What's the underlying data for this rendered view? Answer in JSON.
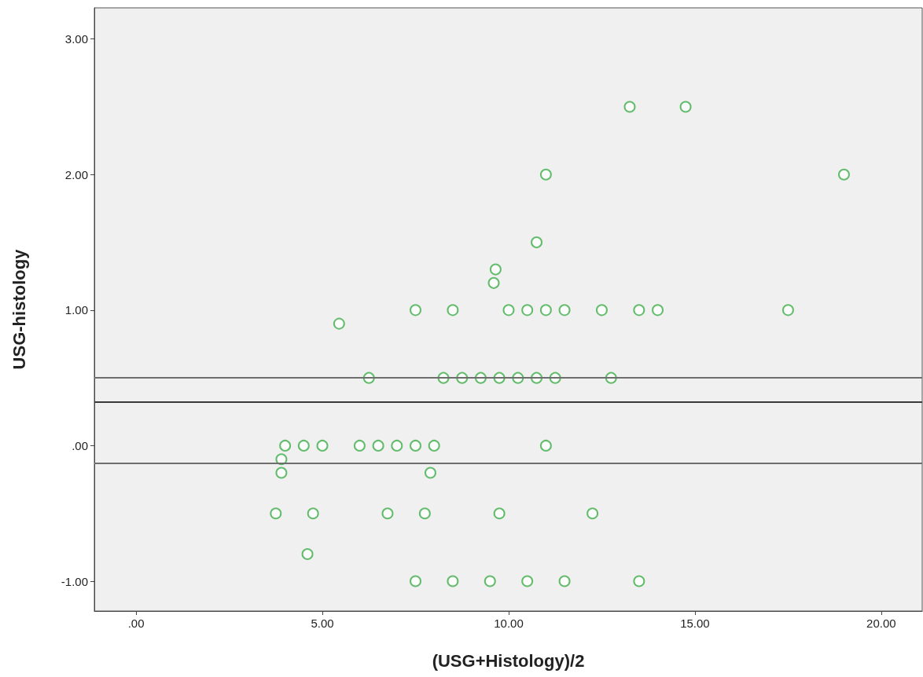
{
  "chart_data": {
    "type": "scatter",
    "xlabel": "(USG+Histology)/2",
    "ylabel": "USG-histology",
    "x": [
      13.25,
      14.75,
      11.0,
      19.0,
      10.75,
      9.65,
      9.6,
      7.5,
      8.5,
      10,
      10.5,
      11,
      11.5,
      12.5,
      13.5,
      14,
      17.5,
      5.45,
      6.25,
      8.25,
      8.75,
      9.25,
      9.75,
      10.25,
      10.75,
      11.25,
      12.75,
      4,
      4.5,
      5,
      6,
      6.5,
      7,
      7.5,
      8,
      11,
      3.9,
      3.9,
      7.9,
      3.75,
      4.75,
      6.75,
      7.75,
      9.75,
      12.25,
      4.6,
      7.5,
      8.5,
      9.5,
      10.5,
      11.5,
      13.5
    ],
    "series": [
      {
        "color": "#3fae49",
        "values": [
          2.5,
          2.5,
          2,
          2,
          1.5,
          1.3,
          1.2,
          1,
          1,
          1,
          1,
          1,
          1,
          1,
          1,
          1,
          1,
          0.9,
          0.5,
          0.5,
          0.5,
          0.5,
          0.5,
          0.5,
          0.5,
          0.5,
          0.5,
          0,
          0,
          0,
          0,
          0,
          0,
          0,
          0,
          0,
          -0.1,
          -0.2,
          -0.2,
          -0.5,
          -0.5,
          -0.5,
          -0.5,
          -0.5,
          -0.5,
          -0.8,
          -1,
          -1,
          -1,
          -1,
          -1,
          -1
        ]
      }
    ],
    "marker": "circle",
    "xlim": [
      -1.12,
      21.1
    ],
    "ylim": [
      -1.22,
      3.23
    ],
    "xticks": [
      {
        "value": 0,
        "label": ".00"
      },
      {
        "value": 5,
        "label": "5.00"
      },
      {
        "value": 10,
        "label": "10.00"
      },
      {
        "value": 15,
        "label": "15.00"
      },
      {
        "value": 20,
        "label": "20.00"
      }
    ],
    "yticks": [
      {
        "value": -1,
        "label": "-1.00"
      },
      {
        "value": 0,
        "label": ".00"
      },
      {
        "value": 1,
        "label": "1.00"
      },
      {
        "value": 2,
        "label": "2.00"
      },
      {
        "value": 3,
        "label": "3.00"
      }
    ],
    "grid": false,
    "ref_lines": [
      {
        "axis": "y",
        "value": 0.5,
        "color": "#6e6e6e"
      },
      {
        "axis": "y",
        "value": 0.32,
        "color": "#3a3a3a"
      },
      {
        "axis": "y",
        "value": -0.13,
        "color": "#6e6e6e"
      }
    ]
  }
}
